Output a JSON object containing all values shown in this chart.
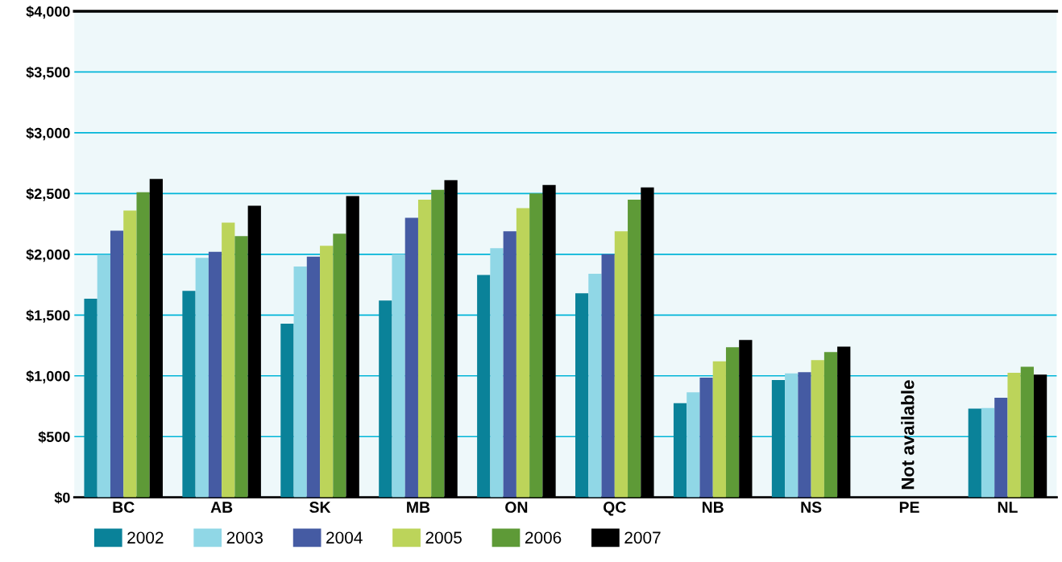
{
  "chart_data": {
    "type": "bar",
    "categories": [
      "BC",
      "AB",
      "SK",
      "MB",
      "ON",
      "QC",
      "NB",
      "NS",
      "PE",
      "NL"
    ],
    "series": [
      {
        "name": "2002",
        "color": "#0a8299",
        "values": [
          1635,
          1700,
          1430,
          1620,
          1830,
          1680,
          775,
          965,
          null,
          730
        ]
      },
      {
        "name": "2003",
        "color": "#90d7e6",
        "values": [
          1995,
          1970,
          1900,
          2000,
          2050,
          1840,
          865,
          1020,
          null,
          735
        ]
      },
      {
        "name": "2004",
        "color": "#455ba3",
        "values": [
          2195,
          2020,
          1980,
          2300,
          2190,
          2000,
          985,
          1030,
          null,
          820
        ]
      },
      {
        "name": "2005",
        "color": "#bcd45a",
        "values": [
          2360,
          2260,
          2070,
          2450,
          2380,
          2190,
          1120,
          1130,
          null,
          1025
        ]
      },
      {
        "name": "2006",
        "color": "#5e9a37",
        "values": [
          2510,
          2150,
          2170,
          2530,
          2500,
          2450,
          1235,
          1195,
          null,
          1075
        ]
      },
      {
        "name": "2007",
        "color": "#000000",
        "values": [
          2620,
          2400,
          2480,
          2610,
          2570,
          2550,
          1295,
          1240,
          null,
          1010
        ]
      }
    ],
    "ylim": [
      0,
      4000
    ],
    "yticks": [
      {
        "value": 0,
        "label": "$0"
      },
      {
        "value": 500,
        "label": "$500"
      },
      {
        "value": 1000,
        "label": "$1,000"
      },
      {
        "value": 1500,
        "label": "$1,500"
      },
      {
        "value": 2000,
        "label": "$2,000"
      },
      {
        "value": 2500,
        "label": "$2,500"
      },
      {
        "value": 3000,
        "label": "$3,000"
      },
      {
        "value": 3500,
        "label": "$3,500"
      },
      {
        "value": 4000,
        "label": "$4,000"
      }
    ],
    "grid": "y",
    "legend": "bottom left",
    "annotations": [
      "Not available"
    ]
  }
}
